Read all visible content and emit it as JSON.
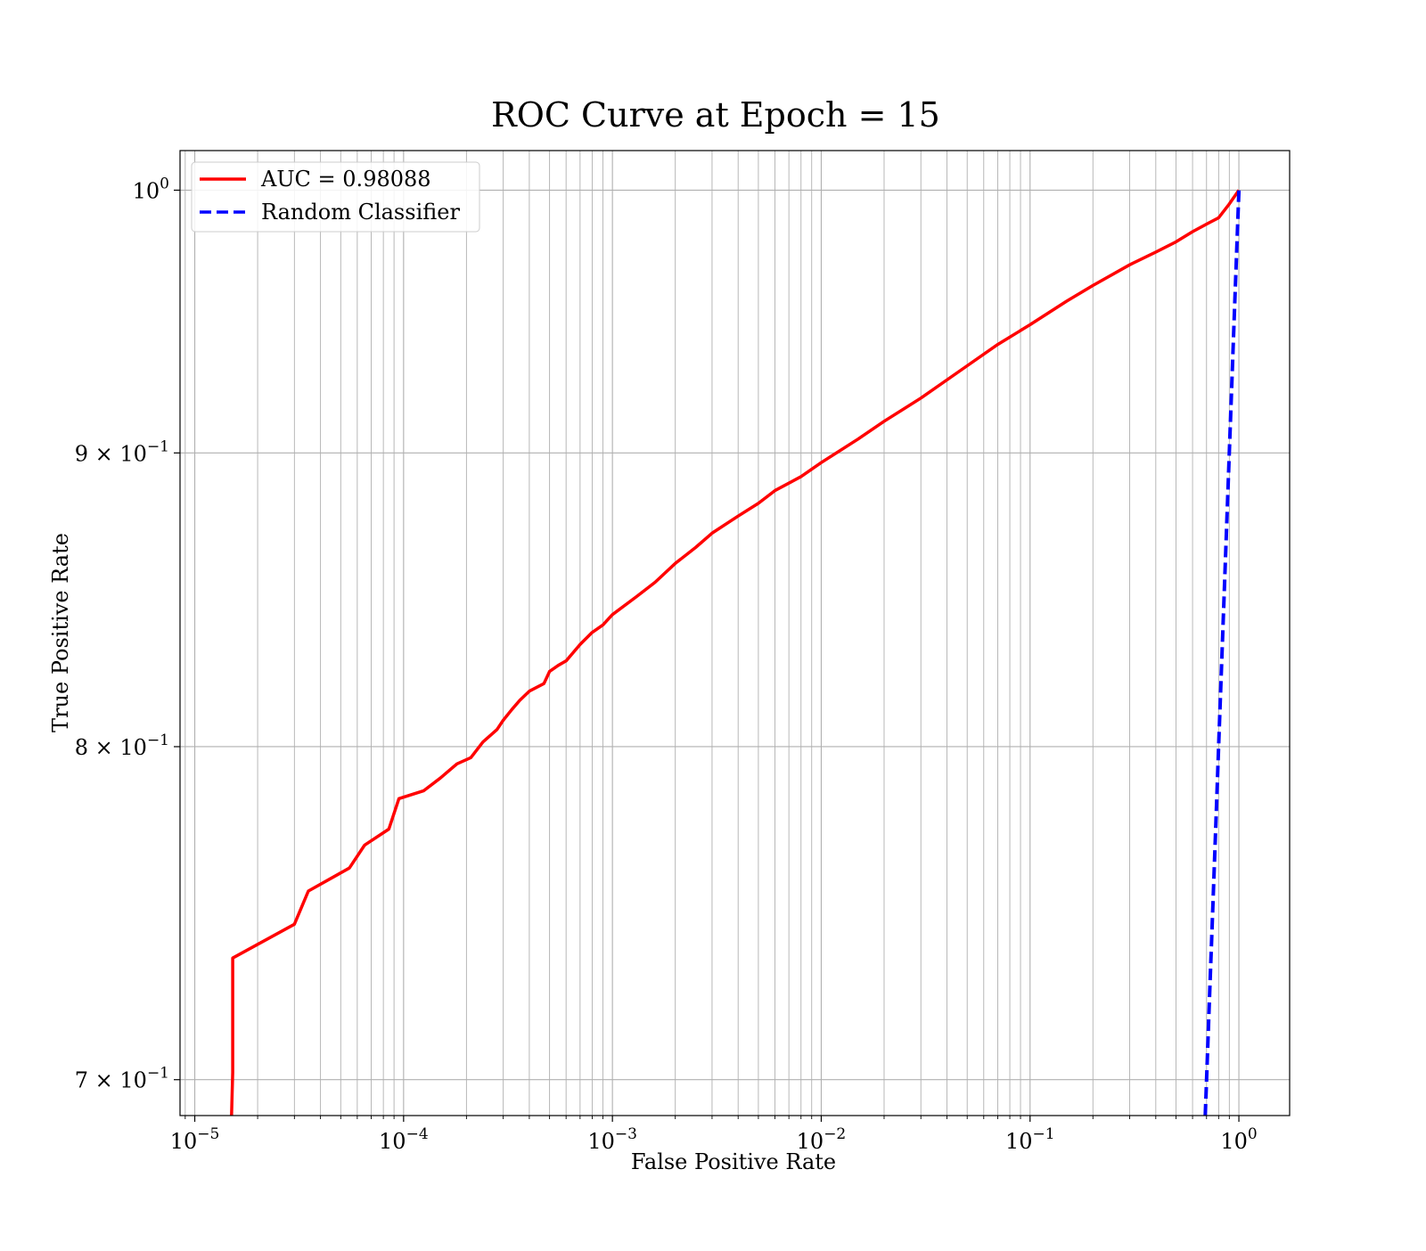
{
  "chart_data": {
    "type": "line",
    "title": "ROC Curve at Epoch = 15",
    "xlabel": "False Positive Rate",
    "ylabel": "True Positive Rate",
    "xscale": "log",
    "yscale": "log",
    "xlim": [
      8.5e-06,
      1.75
    ],
    "ylim": [
      0.69,
      1.016
    ],
    "grid": true,
    "grid_which": "both",
    "legend_position": "upper-left",
    "x_ticks": [
      {
        "value": 1e-05,
        "base": "10",
        "exp": "−5"
      },
      {
        "value": 0.0001,
        "base": "10",
        "exp": "−4"
      },
      {
        "value": 0.001,
        "base": "10",
        "exp": "−3"
      },
      {
        "value": 0.01,
        "base": "10",
        "exp": "−2"
      },
      {
        "value": 0.1,
        "base": "10",
        "exp": "−1"
      },
      {
        "value": 1,
        "base": "10",
        "exp": "0"
      }
    ],
    "y_ticks": [
      {
        "value": 0.7,
        "base": "7 × 10",
        "exp": "−1"
      },
      {
        "value": 0.8,
        "base": "8 × 10",
        "exp": "−1"
      },
      {
        "value": 0.9,
        "base": "9 × 10",
        "exp": "−1"
      },
      {
        "value": 1.0,
        "base": "10",
        "exp": "0"
      }
    ],
    "series": [
      {
        "name": "AUC = 0.98088",
        "color": "#ff0000",
        "style": "solid",
        "x": [
          1.5e-05,
          1.52e-05,
          1.52e-05,
          3e-05,
          3.5e-05,
          5.5e-05,
          6.5e-05,
          8.5e-05,
          9.5e-05,
          0.000125,
          0.00015,
          0.00018,
          0.00021,
          0.00024,
          0.00028,
          0.0003,
          0.00033,
          0.00036,
          0.0004,
          0.00047,
          0.0005,
          0.00055,
          0.0006,
          0.0007,
          0.0008,
          0.0009,
          0.001,
          0.0013,
          0.0016,
          0.002,
          0.0025,
          0.003,
          0.004,
          0.005,
          0.006,
          0.008,
          0.01,
          0.015,
          0.02,
          0.03,
          0.05,
          0.07,
          0.1,
          0.15,
          0.2,
          0.3,
          0.4,
          0.5,
          0.6,
          0.7,
          0.8,
          0.9,
          1.0
        ],
        "y": [
          0.69,
          0.702,
          0.735,
          0.745,
          0.755,
          0.762,
          0.769,
          0.774,
          0.7835,
          0.786,
          0.79,
          0.7945,
          0.7965,
          0.8015,
          0.8055,
          0.8085,
          0.812,
          0.815,
          0.818,
          0.8205,
          0.8245,
          0.8265,
          0.828,
          0.8335,
          0.8375,
          0.84,
          0.8435,
          0.8495,
          0.8545,
          0.861,
          0.8665,
          0.8715,
          0.8775,
          0.882,
          0.8865,
          0.8915,
          0.8965,
          0.905,
          0.9115,
          0.92,
          0.932,
          0.94,
          0.9475,
          0.9565,
          0.9625,
          0.9705,
          0.9755,
          0.9795,
          0.9835,
          0.9865,
          0.989,
          0.9945,
          1.0
        ]
      },
      {
        "name": "Random Classifier",
        "color": "#0000ff",
        "style": "dashed",
        "x": [
          0.69,
          0.7,
          0.72,
          0.75,
          0.78,
          0.8,
          0.85,
          0.9,
          0.95,
          1.0
        ],
        "y": [
          0.69,
          0.7,
          0.72,
          0.75,
          0.78,
          0.8,
          0.85,
          0.9,
          0.95,
          1.0
        ]
      }
    ]
  }
}
